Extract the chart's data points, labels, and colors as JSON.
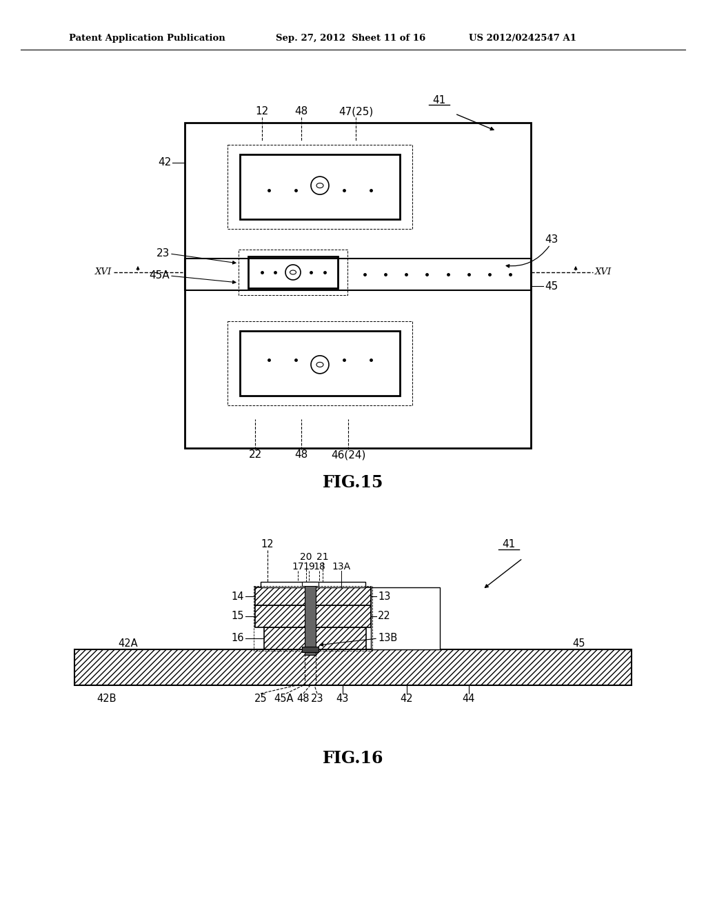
{
  "header_left": "Patent Application Publication",
  "header_middle": "Sep. 27, 2012  Sheet 11 of 16",
  "header_right": "US 2012/0242547 A1",
  "fig15_title": "FIG.15",
  "fig16_title": "FIG.16",
  "bg_color": "#ffffff",
  "line_color": "#000000"
}
